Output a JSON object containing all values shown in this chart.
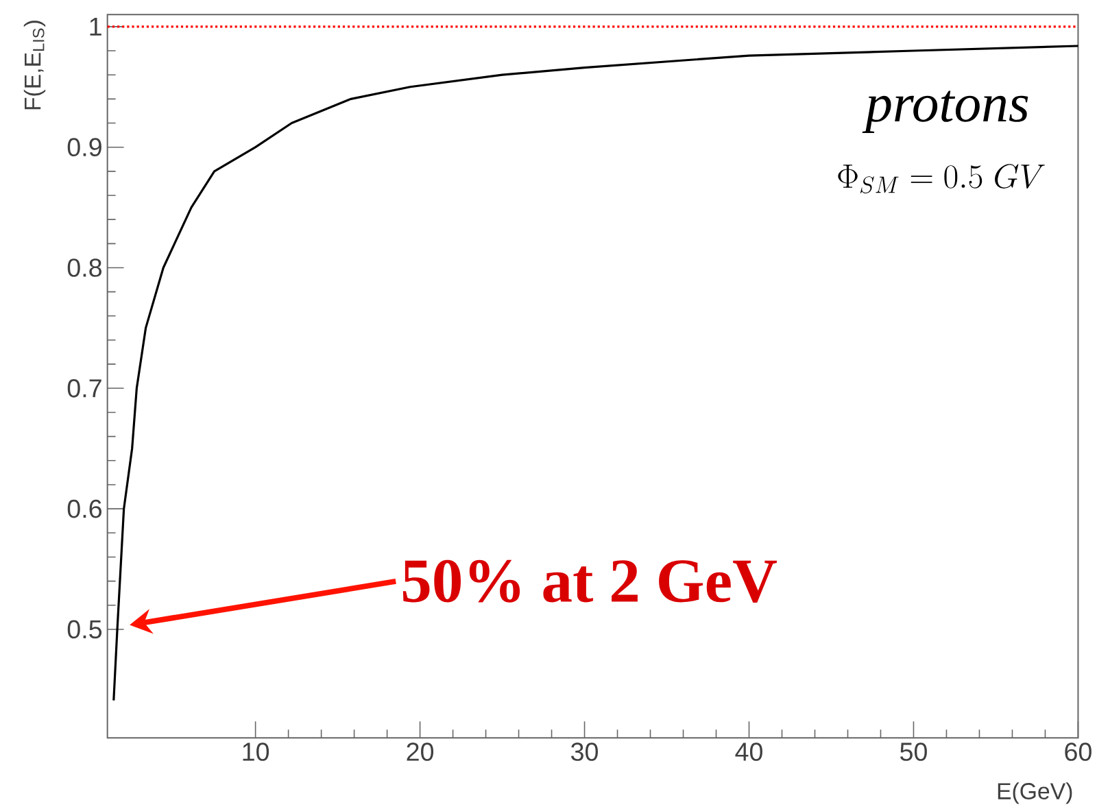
{
  "chart_data": {
    "type": "line",
    "xlabel": "E(GeV)",
    "ylabel": "F(E,E$_{LIS}$)",
    "x": [
      1.38,
      1.6,
      2.0,
      2.5,
      2.78,
      3.33,
      4.4,
      6.1,
      7.5,
      10,
      12.2,
      15.8,
      19.4,
      25,
      30,
      40,
      50,
      60
    ],
    "series": [
      {
        "color": "#000000",
        "values": [
          0.441,
          0.5,
          0.6,
          0.65,
          0.7,
          0.75,
          0.8,
          0.85,
          0.88,
          0.9,
          0.92,
          0.94,
          0.95,
          0.96,
          0.966,
          0.976,
          0.98,
          0.984
        ]
      }
    ],
    "xlim": [
      1,
      60
    ],
    "ylim": [
      0.41,
      1.01
    ],
    "xticks": [
      10,
      20,
      30,
      40,
      50,
      60
    ],
    "yticks": [
      0.5,
      0.6,
      0.7,
      0.8,
      0.9,
      1
    ],
    "ref_lines": [
      {
        "axis": "y",
        "value": 1,
        "color": "#ff0000",
        "line_style": "dotted"
      }
    ],
    "annotations": [
      "protons",
      "\\Phi_{SM} = 0.5\\ GV",
      "50% at 2 GeV"
    ],
    "grid": false,
    "marker": "none",
    "line_style": "solid"
  }
}
